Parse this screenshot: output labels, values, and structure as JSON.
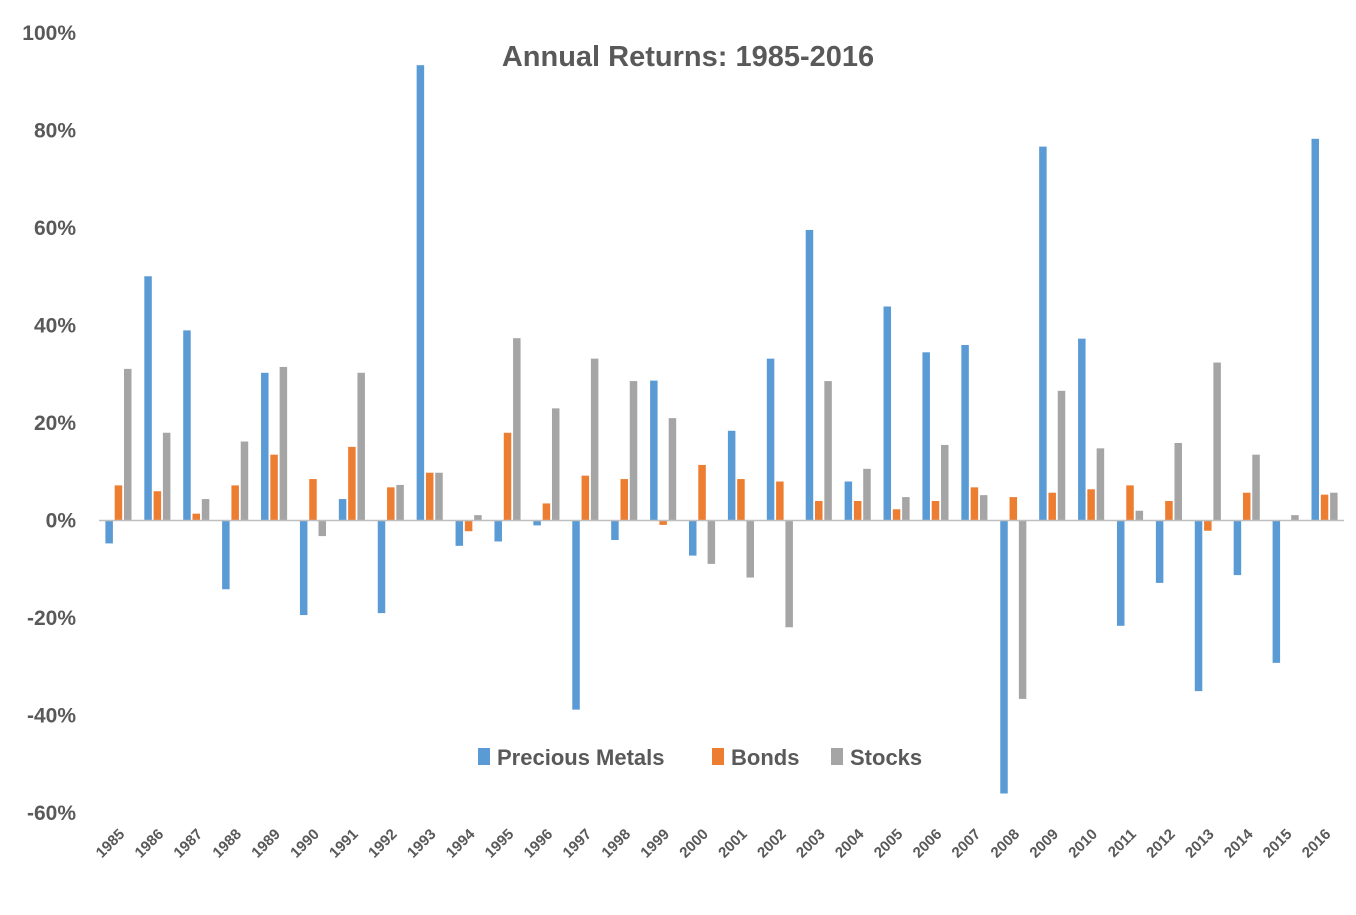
{
  "chart_data": {
    "type": "bar",
    "title": "Annual Returns: 1985-2016",
    "xlabel": "",
    "ylabel": "",
    "ylim": [
      -60,
      100
    ],
    "ytick_values": [
      100,
      80,
      60,
      40,
      20,
      0,
      -20,
      -40,
      -60
    ],
    "ytick_labels": [
      "100%",
      "80%",
      "60%",
      "40%",
      "20%",
      "0%",
      "-20%",
      "-40%",
      "-60%"
    ],
    "categories": [
      "1985",
      "1986",
      "1987",
      "1988",
      "1989",
      "1990",
      "1991",
      "1992",
      "1993",
      "1994",
      "1995",
      "1996",
      "1997",
      "1998",
      "1999",
      "2000",
      "2001",
      "2002",
      "2003",
      "2004",
      "2005",
      "2006",
      "2007",
      "2008",
      "2009",
      "2010",
      "2011",
      "2012",
      "2013",
      "2014",
      "2015",
      "2016"
    ],
    "series": [
      {
        "name": "Precious Metals",
        "color": "#5B9BD5",
        "values": [
          -4.7,
          50.1,
          39.0,
          -14.1,
          30.3,
          -19.4,
          4.4,
          -19.0,
          93.4,
          -5.2,
          -4.3,
          -1.0,
          -38.8,
          -4.0,
          28.7,
          -7.2,
          18.4,
          33.2,
          59.6,
          8.0,
          43.9,
          34.5,
          36.0,
          -56.0,
          76.7,
          37.3,
          -21.6,
          -12.8,
          -35.0,
          -11.2,
          -29.2,
          78.3
        ]
      },
      {
        "name": "Bonds",
        "color": "#ED7D31",
        "values": [
          7.2,
          6.0,
          1.4,
          7.2,
          13.5,
          8.5,
          15.1,
          6.8,
          9.8,
          -2.2,
          18.0,
          3.5,
          9.2,
          8.5,
          -0.9,
          11.4,
          8.5,
          8.0,
          4.0,
          4.0,
          2.3,
          4.0,
          6.8,
          4.8,
          5.7,
          6.4,
          7.2,
          4.0,
          -2.1,
          5.7,
          0.0,
          5.3
        ]
      },
      {
        "name": "Stocks",
        "color": "#A5A5A5",
        "values": [
          31.1,
          18.0,
          4.4,
          16.2,
          31.5,
          -3.2,
          30.3,
          7.3,
          9.8,
          1.1,
          37.4,
          23.0,
          33.2,
          28.6,
          21.0,
          -8.9,
          -11.7,
          -21.9,
          28.6,
          10.6,
          4.8,
          15.5,
          5.2,
          -36.6,
          26.6,
          14.8,
          2.0,
          15.9,
          32.4,
          13.5,
          1.1,
          5.7
        ]
      }
    ],
    "legend_position": "bottom-center",
    "grid": false
  }
}
